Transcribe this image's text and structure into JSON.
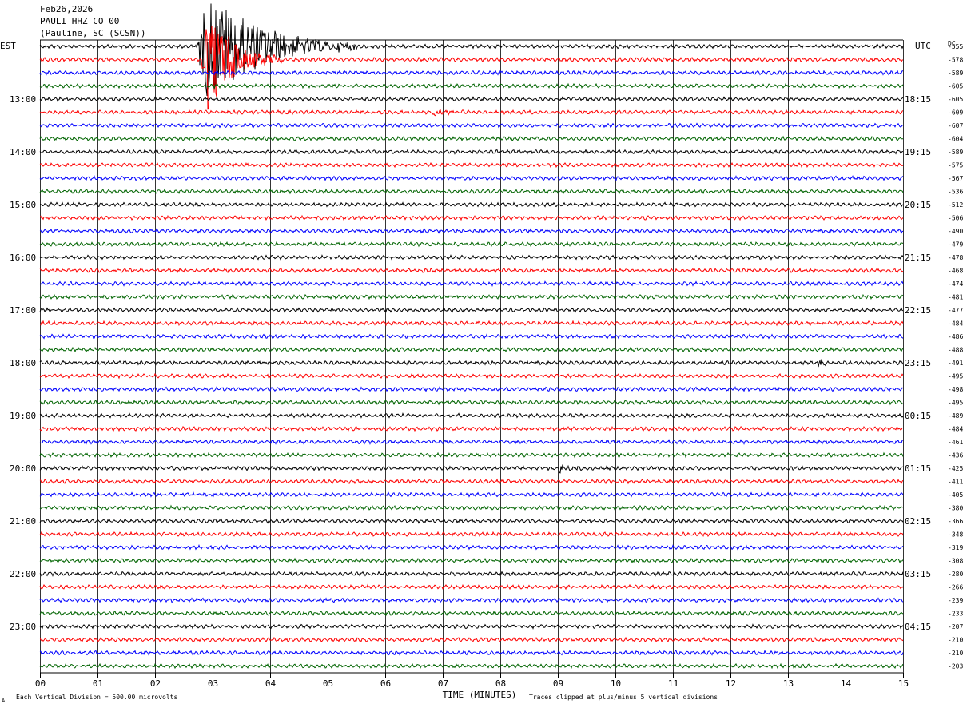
{
  "header": {
    "date": "Feb26,2026",
    "station": "PAULI HHZ CO 00",
    "location": "(Pauline, SC (SCSN))"
  },
  "chart_data": {
    "type": "line",
    "title": "",
    "xlabel": "TIME (MINUTES)",
    "left_axis_label": "EST",
    "right_axis_label": "UTC",
    "dc_label": "DC",
    "xlim": [
      0,
      15
    ],
    "x_ticks": [
      "00",
      "01",
      "02",
      "03",
      "04",
      "05",
      "06",
      "07",
      "08",
      "09",
      "10",
      "11",
      "12",
      "13",
      "14",
      "15"
    ],
    "grid": true,
    "trace_colors": [
      "#000000",
      "#ff0000",
      "#0000ff",
      "#006400"
    ],
    "left_hour_labels": [
      "13:00",
      "14:00",
      "15:00",
      "16:00",
      "17:00",
      "18:00",
      "19:00",
      "20:00",
      "21:00",
      "22:00",
      "23:00"
    ],
    "right_hour_labels": [
      "18:15",
      "19:15",
      "20:15",
      "21:15",
      "22:15",
      "23:15",
      "00:15",
      "01:15",
      "02:15",
      "03:15",
      "04:15"
    ],
    "dc_offsets": [
      "-555",
      "-578",
      "-589",
      "-605",
      "-605",
      "-609",
      "-607",
      "-604",
      "-589",
      "-575",
      "-567",
      "-536",
      "-512",
      "-506",
      "-490",
      "-479",
      "-478",
      "-468",
      "-474",
      "-481",
      "-477",
      "-484",
      "-486",
      "-488",
      "-491",
      "-495",
      "-498",
      "-495",
      "-489",
      "-484",
      "-461",
      "-436",
      "-425",
      "-411",
      "-405",
      "-380",
      "-366",
      "-348",
      "-319",
      "-308",
      "-280",
      "-266",
      "-239",
      "-233",
      "-207",
      "-210",
      "-210",
      "-203"
    ],
    "events": [
      {
        "row": 1,
        "start_min": 2.7,
        "end_min": 5.5,
        "amplitude": "large"
      },
      {
        "row": 2,
        "start_min": 2.8,
        "end_min": 4.2,
        "amplitude": "large"
      },
      {
        "row": 6,
        "start_min": 6.8,
        "end_min": 7.5,
        "amplitude": "small"
      },
      {
        "row": 33,
        "start_min": 9.0,
        "end_min": 9.6,
        "amplitude": "small"
      },
      {
        "row": 25,
        "start_min": 13.5,
        "end_min": 13.8,
        "amplitude": "small"
      }
    ]
  },
  "footer": {
    "scale_note": "Each Vertical Division =  500.00 microvolts",
    "clip_note": "Traces clipped at plus/minus 5 vertical divisions",
    "corner_mark": "A"
  }
}
